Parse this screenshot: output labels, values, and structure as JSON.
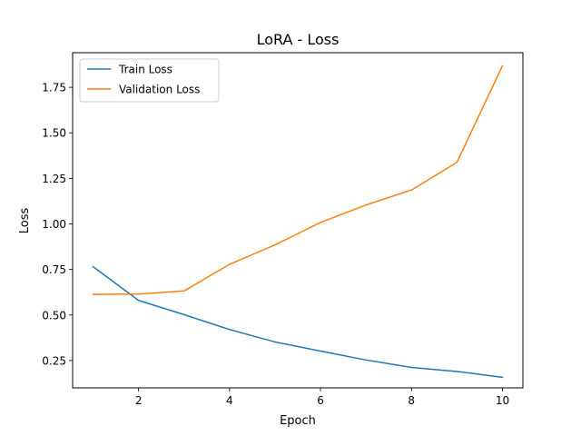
{
  "chart_data": {
    "type": "line",
    "title": "LoRA - Loss",
    "xlabel": "Epoch",
    "ylabel": "Loss",
    "xlim": [
      0.55,
      10.45
    ],
    "ylim": [
      0.1,
      1.94
    ],
    "xticks": [
      2,
      4,
      6,
      8,
      10
    ],
    "yticks": [
      0.25,
      0.5,
      0.75,
      1.0,
      1.25,
      1.5,
      1.75
    ],
    "ytick_labels": [
      "0.25",
      "0.50",
      "0.75",
      "1.00",
      "1.25",
      "1.50",
      "1.75"
    ],
    "grid": false,
    "legend": "top-left",
    "x": [
      1,
      2,
      3,
      4,
      5,
      6,
      7,
      8,
      9,
      10
    ],
    "series": [
      {
        "name": "Train Loss",
        "color": "#1f77b4",
        "values": [
          0.765,
          0.58,
          0.502,
          0.42,
          0.352,
          0.302,
          0.253,
          0.212,
          0.19,
          0.158
        ]
      },
      {
        "name": "Validation Loss",
        "color": "#ff7f0e",
        "values": [
          0.613,
          0.615,
          0.632,
          0.778,
          0.885,
          1.008,
          1.104,
          1.186,
          1.338,
          1.868
        ]
      }
    ]
  }
}
